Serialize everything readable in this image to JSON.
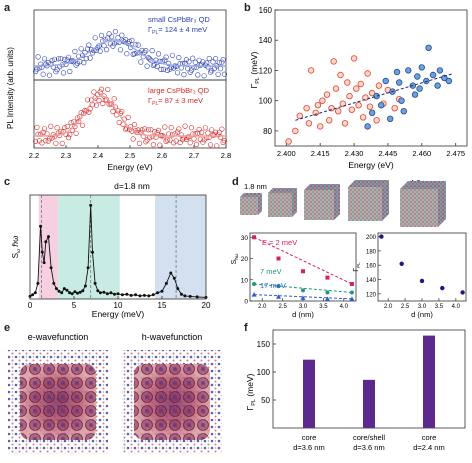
{
  "figure": {
    "panel_letters": [
      "a",
      "b",
      "c",
      "d",
      "e",
      "f"
    ]
  },
  "panel_a": {
    "ylabel": "PL Intensity (arb. units)",
    "xlabel": "Energy (eV)",
    "xticks": [
      "2.2",
      "2.3",
      "2.4",
      "2.5",
      "2.6",
      "2.7",
      "2.8"
    ],
    "xlim": [
      2.2,
      2.8
    ],
    "top_trace": {
      "label": "small CsPbBr₃ QD",
      "gamma": "Γ",
      "gamma_sub": "PL",
      "value": "= 124 ± 4 meV",
      "color": "#2b3fb0"
    },
    "bottom_trace": {
      "label": "large CsPbBr₃ QD",
      "gamma": "Γ",
      "gamma_sub": "PL",
      "value": "= 87 ± 3 meV",
      "color": "#d42b2b"
    }
  },
  "panel_b": {
    "ylabel": "Γ",
    "ylabel_sub": "PL",
    "ylabel_unit": "(meV)",
    "xlabel": "Energy (eV)",
    "xticks": [
      "2.400",
      "2.415",
      "2.430",
      "2.445",
      "2.460",
      "2.475"
    ],
    "yticks": [
      "80",
      "100",
      "120",
      "140",
      "160"
    ],
    "xlim": [
      2.395,
      2.48
    ],
    "ylim": [
      70,
      160
    ],
    "red_points": [
      [
        2.401,
        73
      ],
      [
        2.404,
        80
      ],
      [
        2.406,
        90
      ],
      [
        2.409,
        95
      ],
      [
        2.41,
        85
      ],
      [
        2.411,
        120
      ],
      [
        2.413,
        92
      ],
      [
        2.414,
        97
      ],
      [
        2.415,
        83
      ],
      [
        2.416,
        100
      ],
      [
        2.418,
        104
      ],
      [
        2.419,
        87
      ],
      [
        2.42,
        95
      ],
      [
        2.421,
        126
      ],
      [
        2.422,
        108
      ],
      [
        2.423,
        93
      ],
      [
        2.424,
        117
      ],
      [
        2.425,
        98
      ],
      [
        2.426,
        85
      ],
      [
        2.427,
        112
      ],
      [
        2.428,
        103
      ],
      [
        2.429,
        94
      ],
      [
        2.43,
        128
      ],
      [
        2.431,
        108
      ],
      [
        2.432,
        97
      ],
      [
        2.433,
        111
      ],
      [
        2.434,
        89
      ],
      [
        2.435,
        102
      ],
      [
        2.436,
        118
      ],
      [
        2.437,
        96
      ],
      [
        2.438,
        105
      ],
      [
        2.44,
        87
      ],
      [
        2.441,
        110
      ],
      [
        2.443,
        98
      ],
      [
        2.445,
        107
      ],
      [
        2.448,
        95
      ],
      [
        2.45,
        101
      ]
    ],
    "blue_points": [
      [
        2.436,
        83
      ],
      [
        2.438,
        92
      ],
      [
        2.44,
        103
      ],
      [
        2.442,
        97
      ],
      [
        2.444,
        113
      ],
      [
        2.446,
        88
      ],
      [
        2.447,
        106
      ],
      [
        2.449,
        119
      ],
      [
        2.45,
        112
      ],
      [
        2.451,
        100
      ],
      [
        2.452,
        93
      ],
      [
        2.454,
        120
      ],
      [
        2.456,
        110
      ],
      [
        2.457,
        104
      ],
      [
        2.458,
        116
      ],
      [
        2.459,
        108
      ],
      [
        2.46,
        122
      ],
      [
        2.462,
        113
      ],
      [
        2.463,
        135
      ],
      [
        2.465,
        117
      ],
      [
        2.467,
        110
      ],
      [
        2.468,
        120
      ],
      [
        2.47,
        115
      ],
      [
        2.472,
        113
      ]
    ],
    "trend_start": [
      2.404,
      87
    ],
    "trend_end": [
      2.474,
      118
    ],
    "trend_color": "#1a2a6c"
  },
  "panel_c": {
    "title": "d=1.8 nm",
    "ylabel": "S",
    "ylabel_sub": "ω",
    "ylabel_tail": "ℏω",
    "xlabel": "Energy (meV)",
    "xticks": [
      "0",
      "5",
      "10",
      "15",
      "20"
    ],
    "xlim": [
      0,
      20
    ],
    "ylim": [
      0,
      20
    ],
    "spectrum": [
      [
        0,
        0.5
      ],
      [
        0.3,
        0.8
      ],
      [
        0.6,
        1.2
      ],
      [
        0.9,
        3
      ],
      [
        1.2,
        14
      ],
      [
        1.4,
        9
      ],
      [
        1.6,
        7
      ],
      [
        1.8,
        11
      ],
      [
        2.1,
        12
      ],
      [
        2.4,
        6
      ],
      [
        2.7,
        3
      ],
      [
        3,
        2
      ],
      [
        3.3,
        1.5
      ],
      [
        3.6,
        1.2
      ],
      [
        3.9,
        2
      ],
      [
        4.2,
        1.7
      ],
      [
        4.5,
        1.2
      ],
      [
        4.8,
        1
      ],
      [
        5.1,
        1.4
      ],
      [
        5.4,
        1.1
      ],
      [
        5.7,
        1.3
      ],
      [
        6,
        1.6
      ],
      [
        6.3,
        2.5
      ],
      [
        6.6,
        6
      ],
      [
        6.9,
        18
      ],
      [
        7.1,
        9
      ],
      [
        7.4,
        3
      ],
      [
        7.7,
        1.6
      ],
      [
        8,
        1.2
      ],
      [
        8.4,
        1.3
      ],
      [
        8.8,
        1
      ],
      [
        9.2,
        1.2
      ],
      [
        9.6,
        0.9
      ],
      [
        10,
        1
      ],
      [
        10.5,
        0.8
      ],
      [
        11,
        0.9
      ],
      [
        11.5,
        0.7
      ],
      [
        12,
        0.8
      ],
      [
        12.5,
        0.6
      ],
      [
        13,
        0.7
      ],
      [
        13.5,
        0.6
      ],
      [
        14,
        0.8
      ],
      [
        14.5,
        1.2
      ],
      [
        15,
        1.5
      ],
      [
        15.5,
        3
      ],
      [
        16,
        5
      ],
      [
        16.4,
        4
      ],
      [
        16.8,
        2
      ],
      [
        17.2,
        0.9
      ],
      [
        17.6,
        0.6
      ],
      [
        18.2,
        0.5
      ],
      [
        19,
        0.4
      ],
      [
        20,
        0.3
      ]
    ],
    "bands": [
      {
        "range": [
          1.0,
          3.2
        ],
        "color": "#f6cfe0"
      },
      {
        "range": [
          3.2,
          10.2
        ],
        "color": "#c8ece4"
      },
      {
        "range": [
          14.2,
          20
        ],
        "color": "#d2e0f0"
      }
    ],
    "dashed_lines": [
      1.3,
      6.9,
      16.6
    ]
  },
  "panel_d": {
    "sizes_labels": [
      "1.8 nm",
      "4.2 nm"
    ],
    "left_plot": {
      "ylabel": "S",
      "ylabel_sub": "ħω",
      "xlabel": "d (nm)",
      "xticks": [
        "2.0",
        "2.5",
        "3.0",
        "3.5",
        "4.0"
      ],
      "yticks": [
        "0",
        "10",
        "20",
        "30"
      ],
      "xlim": [
        1.7,
        4.3
      ],
      "ylim": [
        0,
        32
      ],
      "series": [
        {
          "name": "E = 2 meV",
          "color": "#d62060",
          "points": [
            [
              1.8,
              30
            ],
            [
              2.4,
              20
            ],
            [
              3.0,
              14
            ],
            [
              3.6,
              11
            ],
            [
              4.2,
              8
            ]
          ],
          "marker": "square"
        },
        {
          "name": "7 meV",
          "color": "#1a9a7a",
          "points": [
            [
              1.8,
              8
            ],
            [
              2.4,
              7
            ],
            [
              3.0,
              5
            ],
            [
              3.6,
              4
            ],
            [
              4.2,
              4
            ]
          ],
          "marker": "circle"
        },
        {
          "name": "17 meV",
          "color": "#2a5ad8",
          "points": [
            [
              1.8,
              3
            ],
            [
              2.4,
              2
            ],
            [
              3.0,
              1.5
            ],
            [
              3.6,
              1
            ],
            [
              4.2,
              1
            ]
          ],
          "marker": "triangle"
        }
      ]
    },
    "right_plot": {
      "ylabel": "Γ",
      "ylabel_sub": "PL",
      "xlabel": "d (nm)",
      "xticks": [
        "2.0",
        "2.5",
        "3.0",
        "3.5",
        "4.0"
      ],
      "yticks": [
        "120",
        "140",
        "160",
        "180",
        "200"
      ],
      "xlim": [
        1.7,
        4.3
      ],
      "ylim": [
        110,
        205
      ],
      "points": [
        [
          1.8,
          200
        ],
        [
          2.4,
          162
        ],
        [
          3.0,
          138
        ],
        [
          3.6,
          128
        ],
        [
          4.2,
          122
        ]
      ],
      "color": "#1a1a80"
    }
  },
  "panel_e": {
    "left_title": "e-wavefunction",
    "right_title": "h-wavefunction"
  },
  "panel_f": {
    "ylabel": "Γ",
    "ylabel_sub": "PL",
    "ylabel_unit": "(meV)",
    "yticks": [
      "50",
      "100",
      "150"
    ],
    "ylim": [
      0,
      175
    ],
    "bars": [
      {
        "label1": "core",
        "label2": "d=3.6 nm",
        "value": 122
      },
      {
        "label1": "core/shell",
        "label2": "d=3.6 nm",
        "value": 86
      },
      {
        "label1": "core",
        "label2": "d=2.4 nm",
        "value": 165
      }
    ],
    "bar_color": "#5b2a8c"
  }
}
